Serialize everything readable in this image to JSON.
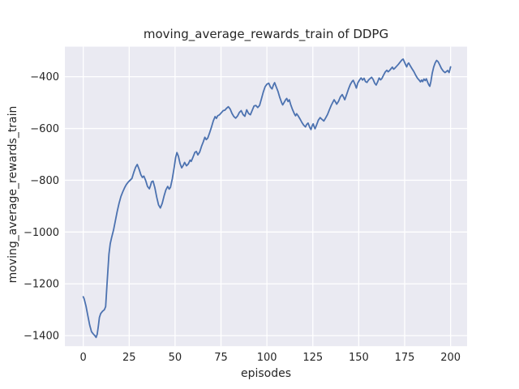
{
  "chart_data": {
    "type": "line",
    "title": "moving_average_rewards_train of DDPG",
    "xlabel": "episodes",
    "ylabel": "moving_average_rewards_train",
    "xlim": [
      -10,
      209
    ],
    "ylim": [
      -1441,
      -284
    ],
    "xticks": [
      0,
      25,
      50,
      75,
      100,
      125,
      150,
      175,
      200
    ],
    "yticks": [
      -400,
      -600,
      -800,
      -1000,
      -1200,
      -1400
    ],
    "grid": true,
    "legend_position": "none",
    "plot_bg_color": "#eaeaf2",
    "grid_color": "#ffffff",
    "text_color": "#262626",
    "series": [
      {
        "name": "moving_average_rewards_train",
        "color": "#4c72b0",
        "points": [
          [
            0,
            -1250
          ],
          [
            0.5,
            -1258
          ],
          [
            1.5,
            -1286
          ],
          [
            2.5,
            -1323
          ],
          [
            3.5,
            -1359
          ],
          [
            4.5,
            -1385
          ],
          [
            5.5,
            -1394
          ],
          [
            6.3,
            -1400
          ],
          [
            7,
            -1407
          ],
          [
            7.6,
            -1395
          ],
          [
            8.2,
            -1365
          ],
          [
            8.8,
            -1330
          ],
          [
            9.5,
            -1315
          ],
          [
            10.5,
            -1306
          ],
          [
            11.5,
            -1300
          ],
          [
            12.2,
            -1288
          ],
          [
            13,
            -1195
          ],
          [
            14,
            -1085
          ],
          [
            14.7,
            -1045
          ],
          [
            15.5,
            -1020
          ],
          [
            16.5,
            -992
          ],
          [
            17.5,
            -956
          ],
          [
            18.5,
            -920
          ],
          [
            19.5,
            -889
          ],
          [
            20.5,
            -863
          ],
          [
            21.5,
            -845
          ],
          [
            22.5,
            -829
          ],
          [
            23.5,
            -816
          ],
          [
            24.5,
            -807
          ],
          [
            25.5,
            -800
          ],
          [
            26.5,
            -793
          ],
          [
            27.5,
            -770
          ],
          [
            28.5,
            -750
          ],
          [
            29.4,
            -739
          ],
          [
            30.4,
            -757
          ],
          [
            31.4,
            -779
          ],
          [
            32.2,
            -789
          ],
          [
            33,
            -784
          ],
          [
            34,
            -801
          ],
          [
            35,
            -824
          ],
          [
            36,
            -833
          ],
          [
            36.6,
            -821
          ],
          [
            37.2,
            -806
          ],
          [
            38,
            -803
          ],
          [
            39,
            -829
          ],
          [
            40,
            -865
          ],
          [
            41,
            -895
          ],
          [
            42,
            -907
          ],
          [
            43,
            -889
          ],
          [
            44,
            -861
          ],
          [
            45,
            -837
          ],
          [
            46,
            -824
          ],
          [
            46.8,
            -834
          ],
          [
            47.5,
            -827
          ],
          [
            48.5,
            -794
          ],
          [
            49.5,
            -751
          ],
          [
            50.3,
            -712
          ],
          [
            51,
            -693
          ],
          [
            51.8,
            -707
          ],
          [
            52.7,
            -735
          ],
          [
            53.6,
            -752
          ],
          [
            54.4,
            -743
          ],
          [
            55.2,
            -731
          ],
          [
            56.2,
            -744
          ],
          [
            57.2,
            -737
          ],
          [
            58.2,
            -722
          ],
          [
            58.8,
            -727
          ],
          [
            59.8,
            -710
          ],
          [
            60.8,
            -692
          ],
          [
            61.6,
            -689
          ],
          [
            62.4,
            -702
          ],
          [
            63.4,
            -691
          ],
          [
            64.4,
            -669
          ],
          [
            65.4,
            -651
          ],
          [
            66.2,
            -634
          ],
          [
            67,
            -643
          ],
          [
            67.8,
            -637
          ],
          [
            68.8,
            -617
          ],
          [
            69.8,
            -595
          ],
          [
            70.8,
            -571
          ],
          [
            71.8,
            -554
          ],
          [
            72.5,
            -561
          ],
          [
            73.2,
            -551
          ],
          [
            74.2,
            -547
          ],
          [
            75.2,
            -539
          ],
          [
            76.2,
            -531
          ],
          [
            77.2,
            -529
          ],
          [
            78,
            -522
          ],
          [
            79,
            -516
          ],
          [
            80,
            -525
          ],
          [
            81,
            -542
          ],
          [
            82,
            -554
          ],
          [
            83,
            -560
          ],
          [
            84,
            -552
          ],
          [
            85,
            -538
          ],
          [
            86,
            -531
          ],
          [
            87,
            -546
          ],
          [
            88,
            -553
          ],
          [
            89,
            -528
          ],
          [
            90,
            -542
          ],
          [
            91,
            -547
          ],
          [
            92,
            -530
          ],
          [
            93,
            -513
          ],
          [
            94,
            -511
          ],
          [
            95,
            -519
          ],
          [
            96,
            -511
          ],
          [
            97,
            -486
          ],
          [
            98,
            -460
          ],
          [
            99,
            -439
          ],
          [
            100,
            -429
          ],
          [
            101,
            -425
          ],
          [
            102,
            -441
          ],
          [
            102.8,
            -447
          ],
          [
            103.6,
            -431
          ],
          [
            104.2,
            -423
          ],
          [
            105,
            -438
          ],
          [
            106,
            -456
          ],
          [
            107,
            -480
          ],
          [
            108,
            -500
          ],
          [
            108.6,
            -509
          ],
          [
            109.4,
            -499
          ],
          [
            110.2,
            -489
          ],
          [
            110.8,
            -484
          ],
          [
            111.5,
            -496
          ],
          [
            112.2,
            -489
          ],
          [
            113,
            -509
          ],
          [
            114,
            -528
          ],
          [
            115,
            -544
          ],
          [
            115.6,
            -551
          ],
          [
            116.2,
            -543
          ],
          [
            117,
            -551
          ],
          [
            118,
            -563
          ],
          [
            119,
            -576
          ],
          [
            120,
            -587
          ],
          [
            121,
            -594
          ],
          [
            121.6,
            -585
          ],
          [
            122.4,
            -579
          ],
          [
            123.4,
            -597
          ],
          [
            124,
            -604
          ],
          [
            124.6,
            -590
          ],
          [
            125.2,
            -582
          ],
          [
            125.7,
            -593
          ],
          [
            126.2,
            -601
          ],
          [
            127,
            -587
          ],
          [
            128,
            -568
          ],
          [
            129,
            -558
          ],
          [
            130,
            -565
          ],
          [
            131,
            -571
          ],
          [
            132,
            -559
          ],
          [
            133,
            -546
          ],
          [
            134,
            -528
          ],
          [
            135,
            -511
          ],
          [
            136,
            -497
          ],
          [
            136.6,
            -489
          ],
          [
            137.4,
            -498
          ],
          [
            138,
            -506
          ],
          [
            139,
            -495
          ],
          [
            140,
            -478
          ],
          [
            141,
            -469
          ],
          [
            141.8,
            -480
          ],
          [
            142.4,
            -489
          ],
          [
            143.4,
            -469
          ],
          [
            144.4,
            -448
          ],
          [
            145.4,
            -430
          ],
          [
            146.4,
            -418
          ],
          [
            147,
            -414
          ],
          [
            148,
            -430
          ],
          [
            148.7,
            -444
          ],
          [
            149.5,
            -424
          ],
          [
            150.5,
            -412
          ],
          [
            151.3,
            -405
          ],
          [
            152.1,
            -413
          ],
          [
            152.9,
            -406
          ],
          [
            153.7,
            -419
          ],
          [
            154.5,
            -422
          ],
          [
            155.3,
            -413
          ],
          [
            156.2,
            -407
          ],
          [
            157,
            -402
          ],
          [
            157.8,
            -410
          ],
          [
            158.7,
            -425
          ],
          [
            159.5,
            -432
          ],
          [
            160.3,
            -420
          ],
          [
            161.1,
            -405
          ],
          [
            161.9,
            -412
          ],
          [
            162.6,
            -407
          ],
          [
            163.5,
            -394
          ],
          [
            164.4,
            -382
          ],
          [
            165.3,
            -375
          ],
          [
            166,
            -381
          ],
          [
            166.8,
            -376
          ],
          [
            167.6,
            -369
          ],
          [
            168.3,
            -363
          ],
          [
            169,
            -371
          ],
          [
            169.8,
            -366
          ],
          [
            170.7,
            -359
          ],
          [
            171.6,
            -352
          ],
          [
            172.6,
            -343
          ],
          [
            173.5,
            -335
          ],
          [
            174.2,
            -332
          ],
          [
            175,
            -345
          ],
          [
            175.6,
            -355
          ],
          [
            176.1,
            -362
          ],
          [
            176.6,
            -352
          ],
          [
            177.2,
            -347
          ],
          [
            178,
            -357
          ],
          [
            179,
            -369
          ],
          [
            180,
            -380
          ],
          [
            181,
            -394
          ],
          [
            182,
            -406
          ],
          [
            183,
            -414
          ],
          [
            183.6,
            -420
          ],
          [
            184.2,
            -413
          ],
          [
            184.8,
            -419
          ],
          [
            185.5,
            -409
          ],
          [
            186.2,
            -415
          ],
          [
            186.8,
            -408
          ],
          [
            187.5,
            -421
          ],
          [
            188.2,
            -432
          ],
          [
            188.7,
            -437
          ],
          [
            189.3,
            -418
          ],
          [
            190,
            -387
          ],
          [
            190.8,
            -363
          ],
          [
            191.6,
            -347
          ],
          [
            192.4,
            -337
          ],
          [
            193.2,
            -342
          ],
          [
            194,
            -353
          ],
          [
            195,
            -368
          ],
          [
            196,
            -378
          ],
          [
            197,
            -384
          ],
          [
            197.7,
            -380
          ],
          [
            198.4,
            -376
          ],
          [
            199.2,
            -384
          ],
          [
            200,
            -362
          ]
        ]
      }
    ]
  }
}
